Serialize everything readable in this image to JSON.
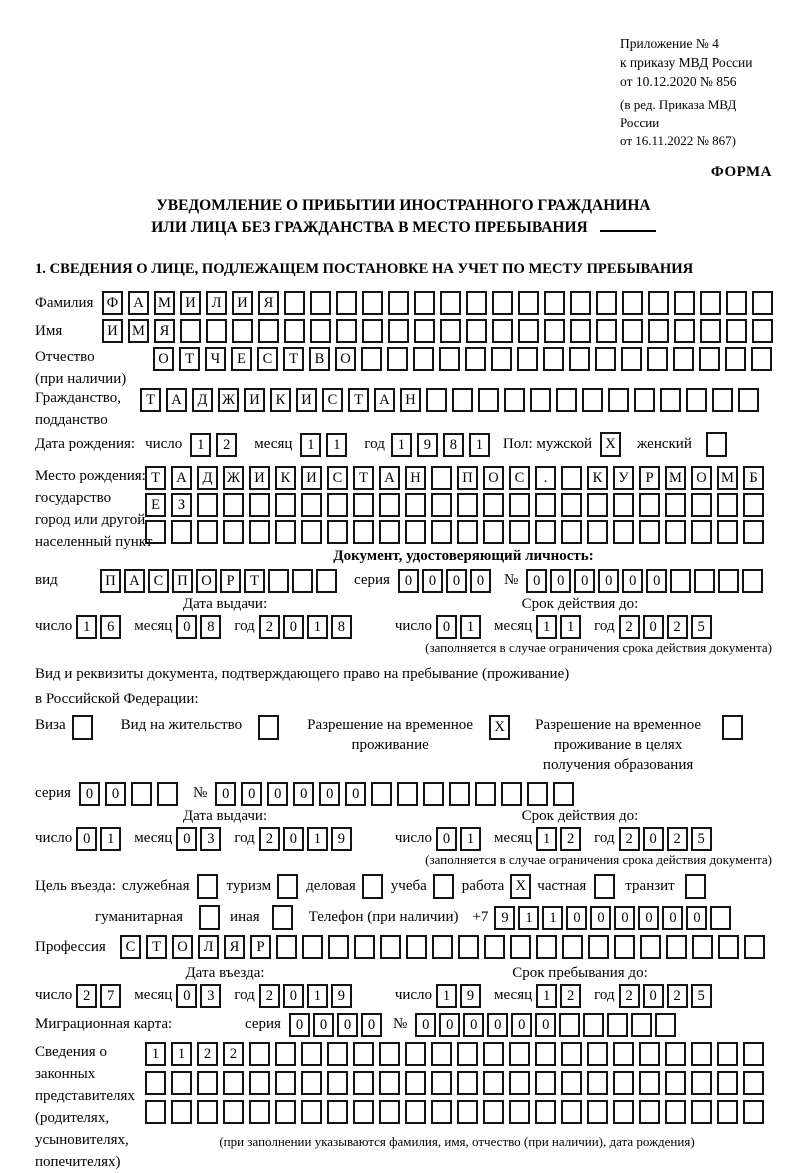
{
  "header": {
    "annex": [
      "Приложение № 4",
      "к приказу МВД России",
      "от 10.12.2020 № 856"
    ],
    "note": [
      "(в ред. Приказа МВД России",
      "от 16.11.2022 № 867)"
    ],
    "forma": "ФОРМА"
  },
  "title": {
    "line1": "УВЕДОМЛЕНИЕ О ПРИБЫТИИ ИНОСТРАННОГО ГРАЖДАНИНА",
    "line2": "ИЛИ ЛИЦА БЕЗ ГРАЖДАНСТВА В МЕСТО ПРЕБЫВАНИЯ"
  },
  "section1_heading": "1. СВЕДЕНИЯ О ЛИЦЕ, ПОДЛЕЖАЩЕМ ПОСТАНОВКЕ НА УЧЕТ ПО МЕСТУ ПРЕБЫВАНИЯ",
  "labels": {
    "familiya": "Фамилия",
    "imya": "Имя",
    "otchestvo": "Отчество",
    "otchestvo_note": "(при наличии)",
    "grazhdanstvo1": "Гражданство,",
    "grazhdanstvo2": "подданство",
    "birth_date": "Дата рождения:",
    "chislo": "число",
    "mesyac": "месяц",
    "god": "год",
    "pol_male": "Пол: мужской",
    "female": "женский",
    "birth_place": [
      "Место рождения:",
      "государство",
      "город или другой",
      "населенный пункт"
    ],
    "doc_heading": "Документ, удостоверяющий личность:",
    "vid": "вид",
    "seriya": "серия",
    "nomer": "№",
    "data_vydachi": "Дата выдачи:",
    "srok_deystviya": "Срок действия до:",
    "srok_note": "(заполняется в случае ограничения срока действия документа)",
    "residence_doc1": "Вид и реквизиты документа, подтверждающего право на пребывание (проживание)",
    "residence_doc2": "в Российской Федерации:",
    "viza": "Виза",
    "vid_na_zhitelstvo": "Вид на жительство",
    "rvp": "Разрешение на временное проживание",
    "rvp_edu": "Разрешение на временное проживание в целях получения образования",
    "tsel_vezda": "Цель въезда:",
    "sluzhebnaya": "служебная",
    "turizm": "туризм",
    "delovaya": "деловая",
    "ucheba": "учеба",
    "rabota": "работа",
    "chastnaya": "частная",
    "tranzit": "транзит",
    "gumanitarnaya": "гуманитарная",
    "inaya": "иная",
    "telefon": "Телефон (при наличии)",
    "plus7": "+7",
    "professiya": "Профессия",
    "data_vezda": "Дата въезда:",
    "srok_prebyvaniya": "Срок пребывания до:",
    "migr_karta": "Миграционная карта:",
    "svedeniya": [
      "Сведения о",
      "законных",
      "представителях",
      "(родителях,",
      "усыновителях,",
      "попечителях)"
    ],
    "repr_note": "(при заполнении указываются фамилия, имя, отчество (при наличии), дата рождения)"
  },
  "fields": {
    "familiya": {
      "value": "ФАМИЛИЯ",
      "len": 26
    },
    "imya": {
      "value": "ИМЯ",
      "len": 26
    },
    "otchestvo": {
      "value": "ОТЧЕСТВО",
      "len": 24
    },
    "grazhdanstvo": {
      "value": "ТАДЖИКИСТАН",
      "len": 24
    },
    "birth_day": {
      "value": "12",
      "len": 2
    },
    "birth_month": {
      "value": "11",
      "len": 2
    },
    "birth_year": {
      "value": "1981",
      "len": 4
    },
    "birth_place1": {
      "value": "ТАДЖИКИСТАН ПОС. КУРМОМБ",
      "len": 24
    },
    "birth_place2": {
      "value": "ЕЗ",
      "len": 24
    },
    "birth_place3": {
      "value": "",
      "len": 24
    },
    "doc_vid": {
      "value": "ПАСПОРТ",
      "len": 10
    },
    "doc_seriya": {
      "value": "0000",
      "len": 4
    },
    "doc_nomer": {
      "value": "000000",
      "len": 10
    },
    "doc_issue_day": {
      "value": "16",
      "len": 2
    },
    "doc_issue_month": {
      "value": "08",
      "len": 2
    },
    "doc_issue_year": {
      "value": "2018",
      "len": 4
    },
    "doc_valid_day": {
      "value": "01",
      "len": 2
    },
    "doc_valid_month": {
      "value": "11",
      "len": 2
    },
    "doc_valid_year": {
      "value": "2025",
      "len": 4
    },
    "permit_seriya": {
      "value": "00",
      "len": 4
    },
    "permit_nomer": {
      "value": "000000",
      "len": 14
    },
    "permit_issue_day": {
      "value": "01",
      "len": 2
    },
    "permit_issue_month": {
      "value": "03",
      "len": 2
    },
    "permit_issue_year": {
      "value": "2019",
      "len": 4
    },
    "permit_valid_day": {
      "value": "01",
      "len": 2
    },
    "permit_valid_month": {
      "value": "12",
      "len": 2
    },
    "permit_valid_year": {
      "value": "2025",
      "len": 4
    },
    "phone": {
      "value": "911000000",
      "len": 10
    },
    "professiya": {
      "value": "СТОЛЯР",
      "len": 25
    },
    "entry_day": {
      "value": "27",
      "len": 2
    },
    "entry_month": {
      "value": "03",
      "len": 2
    },
    "entry_year": {
      "value": "2019",
      "len": 4
    },
    "stay_day": {
      "value": "19",
      "len": 2
    },
    "stay_month": {
      "value": "12",
      "len": 2
    },
    "stay_year": {
      "value": "2025",
      "len": 4
    },
    "migr_seriya": {
      "value": "0000",
      "len": 4
    },
    "migr_nomer": {
      "value": "000000",
      "len": 11
    },
    "repr1": {
      "value": "1122",
      "len": 24
    },
    "repr2": {
      "value": "",
      "len": 24
    },
    "repr3": {
      "value": "",
      "len": 24
    }
  },
  "checks": {
    "male": "X",
    "female": "",
    "viza": "",
    "vid_na_zhitelstvo": "",
    "rvp": "X",
    "rvp_edu": "",
    "sluzhebnaya": "",
    "turizm": "",
    "delovaya": "",
    "ucheba": "",
    "rabota": "X",
    "chastnaya": "",
    "tranzit": "",
    "gumanitarnaya": "",
    "inaya": ""
  }
}
